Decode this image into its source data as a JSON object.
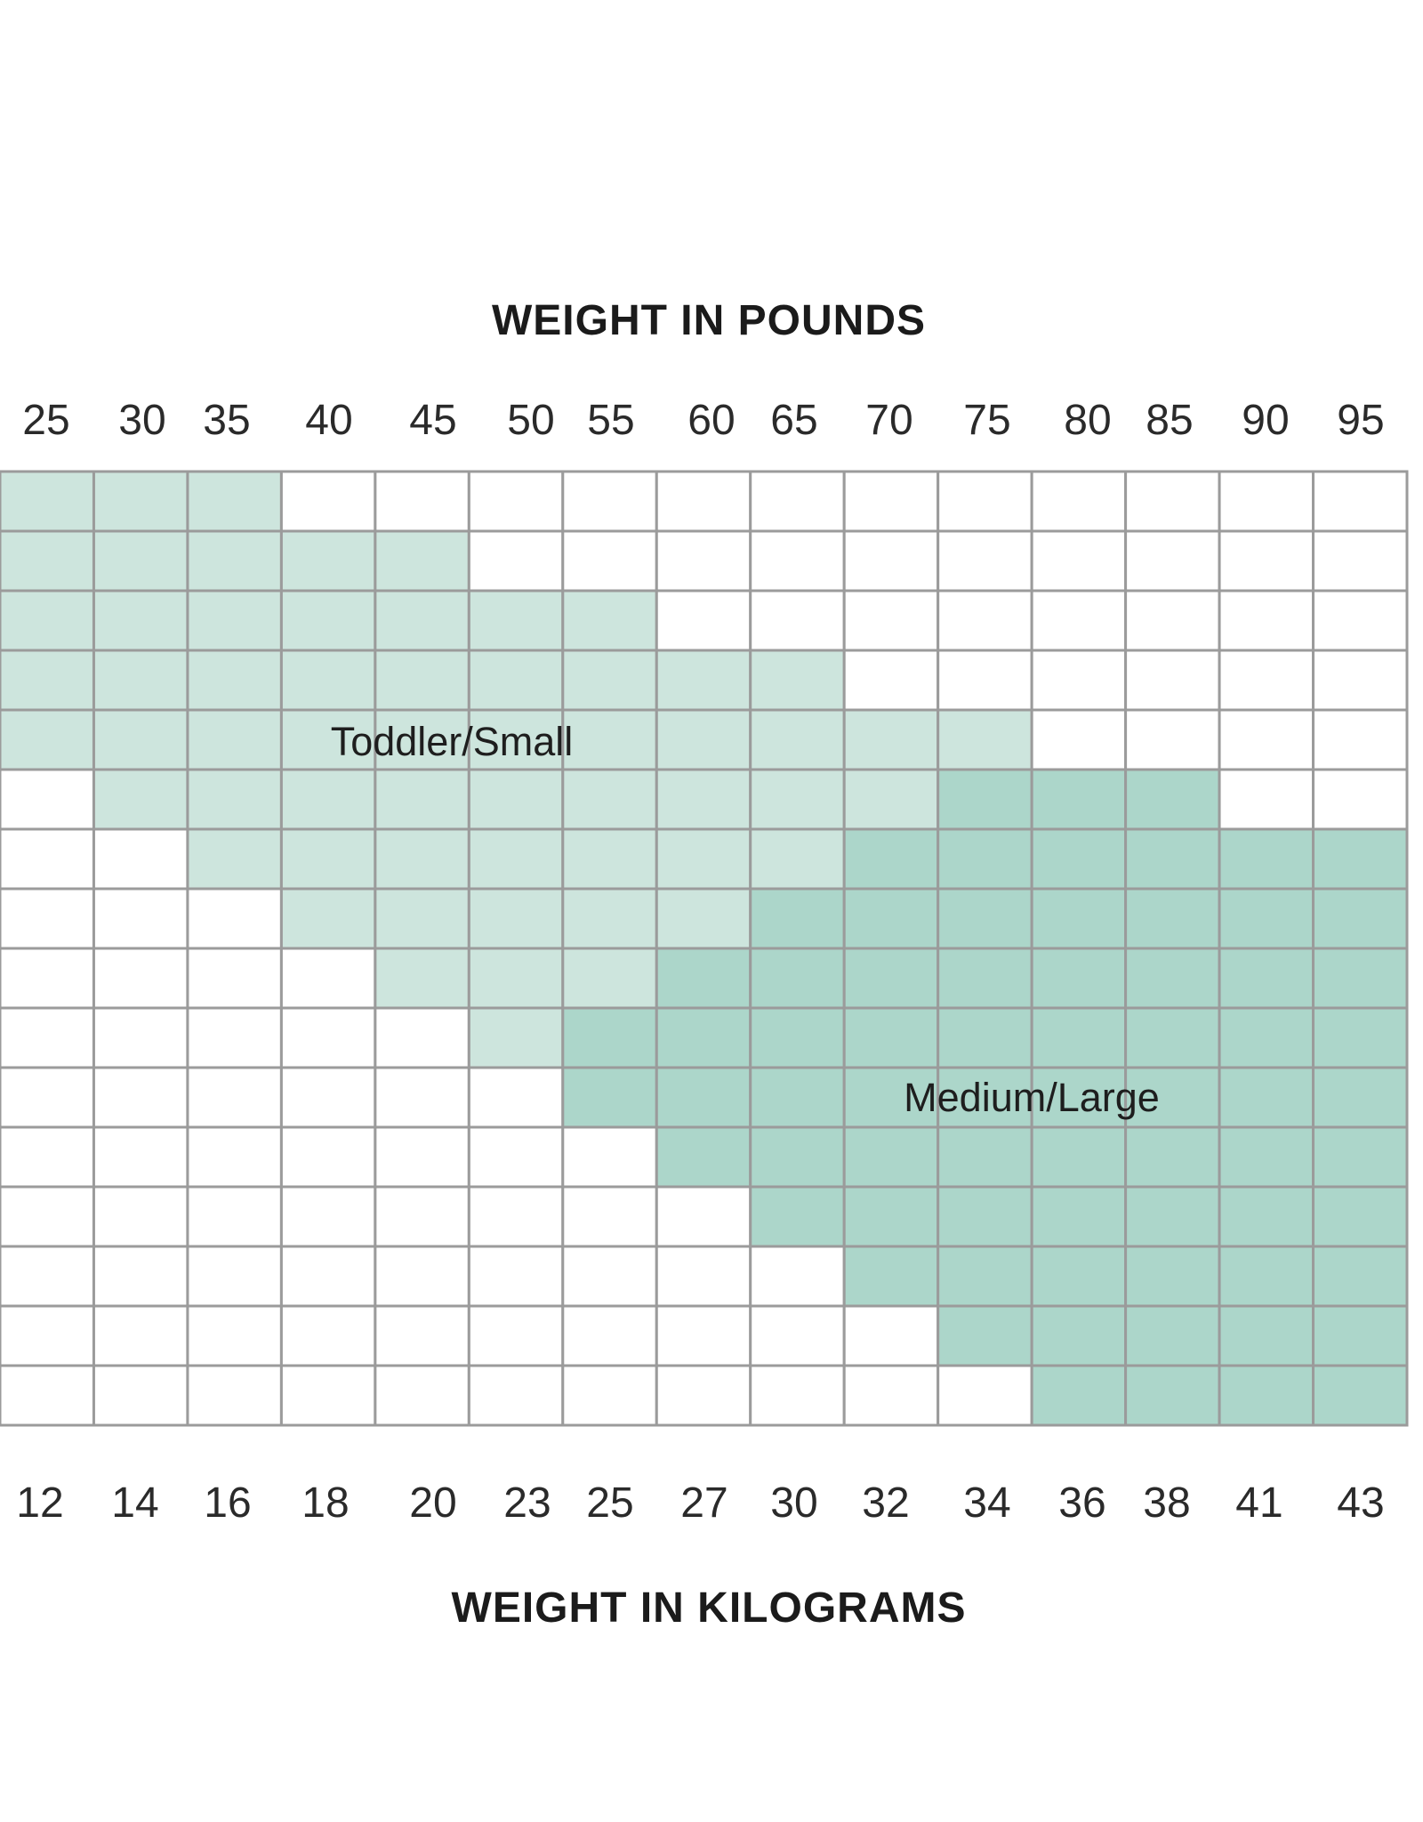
{
  "chart_data": {
    "type": "heatmap",
    "top_axis": {
      "title": "WEIGHT IN POUNDS",
      "ticks": [
        "25",
        "30",
        "35",
        "40",
        "45",
        "50",
        "55",
        "60",
        "65",
        "70",
        "75",
        "80",
        "85",
        "90",
        "95"
      ]
    },
    "bottom_axis": {
      "title": "WEIGHT IN KILOGRAMS",
      "ticks": [
        "12",
        "14",
        "16",
        "18",
        "20",
        "23",
        "25",
        "27",
        "30",
        "32",
        "34",
        "36",
        "38",
        "41",
        "43"
      ]
    },
    "regions": [
      {
        "label": "Toddler/Small",
        "color": "#cde5dd",
        "row_column_ranges": [
          [
            0,
            2
          ],
          [
            0,
            4
          ],
          [
            0,
            6
          ],
          [
            0,
            8
          ],
          [
            0,
            10
          ],
          [
            1,
            9
          ],
          [
            2,
            8
          ],
          [
            3,
            7
          ],
          [
            4,
            6
          ],
          [
            5,
            5
          ],
          [],
          [],
          [],
          [],
          [],
          []
        ]
      },
      {
        "label": "Medium/Large",
        "color": "#acd6ca",
        "row_column_ranges": [
          [],
          [],
          [],
          [],
          [],
          [
            10,
            12
          ],
          [
            9,
            14
          ],
          [
            8,
            14
          ],
          [
            7,
            14
          ],
          [
            6,
            14
          ],
          [
            6,
            14
          ],
          [
            7,
            14
          ],
          [
            8,
            14
          ],
          [
            9,
            14
          ],
          [
            10,
            14
          ],
          [
            11,
            14
          ]
        ]
      }
    ],
    "colors": {
      "grid_line": "#9b9b9b",
      "empty_cell": "#ffffff"
    }
  }
}
